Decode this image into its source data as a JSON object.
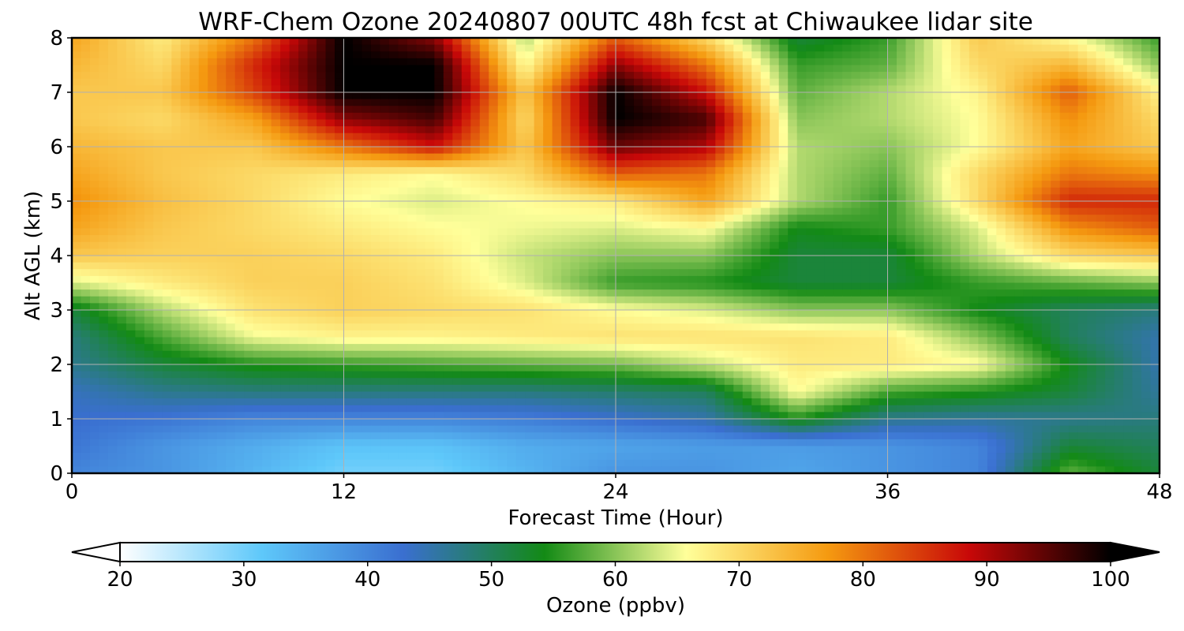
{
  "chart_data": {
    "type": "heatmap",
    "title": "WRF-Chem Ozone  20240807 00UTC 48h fcst at Chiwaukee lidar site",
    "xlabel": "Forecast Time (Hour)",
    "ylabel": "Alt AGL (km)",
    "xlim": [
      0,
      48
    ],
    "ylim": [
      0,
      8
    ],
    "xticks": [
      "0",
      "12",
      "24",
      "36",
      "48"
    ],
    "yticks": [
      "0",
      "1",
      "2",
      "3",
      "4",
      "5",
      "6",
      "7",
      "8"
    ],
    "grid": true,
    "x": [
      0,
      4,
      8,
      12,
      16,
      20,
      24,
      28,
      32,
      36,
      40,
      44,
      48
    ],
    "y": [
      0,
      0.5,
      1,
      1.5,
      2,
      2.5,
      3,
      3.5,
      4,
      4.5,
      5,
      5.5,
      6,
      6.5,
      7,
      7.5,
      8
    ],
    "z": [
      [
        40,
        38,
        34,
        30,
        30,
        34,
        38,
        38,
        36,
        38,
        40,
        58,
        52
      ],
      [
        42,
        38,
        35,
        32,
        32,
        35,
        36,
        37,
        37,
        38,
        40,
        52,
        50
      ],
      [
        43,
        42,
        40,
        40,
        40,
        41,
        43,
        45,
        55,
        47,
        46,
        47,
        48
      ],
      [
        44,
        47,
        48,
        48,
        48,
        48,
        49,
        50,
        66,
        57,
        55,
        52,
        46
      ],
      [
        47,
        52,
        55,
        56,
        57,
        58,
        59,
        63,
        68,
        68,
        66,
        54,
        45
      ],
      [
        48,
        57,
        65,
        67,
        67,
        68,
        69,
        69,
        69,
        68,
        60,
        50,
        45
      ],
      [
        52,
        62,
        69,
        71,
        70,
        69,
        66,
        64,
        60,
        60,
        54,
        50,
        48
      ],
      [
        64,
        68,
        71,
        71,
        69,
        64,
        56,
        55,
        52,
        52,
        56,
        58,
        60
      ],
      [
        72,
        71,
        71,
        70,
        68,
        63,
        60,
        60,
        52,
        52,
        62,
        70,
        72
      ],
      [
        76,
        72,
        70,
        68,
        66,
        65,
        64,
        66,
        54,
        56,
        64,
        78,
        82
      ],
      [
        78,
        73,
        70,
        66,
        64,
        66,
        68,
        76,
        62,
        56,
        70,
        86,
        86
      ],
      [
        76,
        72,
        70,
        68,
        66,
        70,
        82,
        80,
        62,
        58,
        70,
        80,
        78
      ],
      [
        74,
        72,
        72,
        80,
        88,
        72,
        94,
        90,
        62,
        60,
        66,
        76,
        72
      ],
      [
        72,
        70,
        76,
        92,
        96,
        70,
        100,
        96,
        60,
        62,
        66,
        78,
        70
      ],
      [
        72,
        72,
        84,
        100,
        100,
        72,
        100,
        88,
        58,
        62,
        67,
        82,
        67
      ],
      [
        74,
        70,
        86,
        100,
        100,
        66,
        92,
        80,
        56,
        58,
        70,
        74,
        60
      ],
      [
        76,
        68,
        80,
        100,
        92,
        62,
        82,
        70,
        52,
        56,
        72,
        66,
        56
      ]
    ],
    "colorbar": {
      "label": "Ozone  (ppbv)",
      "min": 20,
      "max": 100,
      "ticks": [
        "20",
        "30",
        "40",
        "50",
        "60",
        "70",
        "80",
        "90",
        "100"
      ],
      "extend": "both",
      "colors": [
        "#ffffff",
        "#5ec8fa",
        "#3a6fd0",
        "#138a15",
        "#ffff9a",
        "#f59a10",
        "#c80808",
        "#000000"
      ]
    }
  }
}
